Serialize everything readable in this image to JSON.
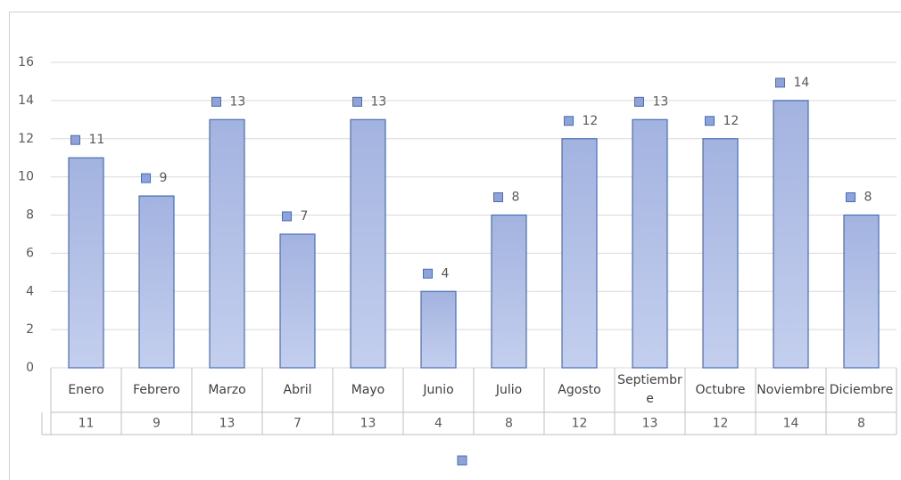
{
  "chart_data": {
    "type": "bar",
    "categories": [
      "Enero",
      "Febrero",
      "Marzo",
      "Abril",
      "Mayo",
      "Junio",
      "Julio",
      "Agosto",
      "Septiembre",
      "Octubre",
      "Noviembre",
      "Diciembre"
    ],
    "values": [
      11,
      9,
      13,
      7,
      13,
      4,
      8,
      12,
      13,
      12,
      14,
      8
    ],
    "color": "#a9b8e2",
    "ylim": [
      0,
      16
    ],
    "yticks": [
      0,
      2,
      4,
      6,
      8,
      10,
      12,
      14,
      16
    ],
    "grid": true
  }
}
